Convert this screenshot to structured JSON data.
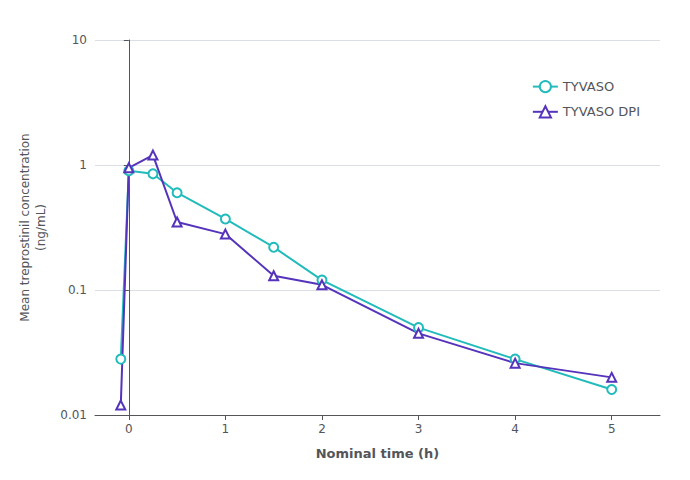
{
  "chart_data": {
    "type": "line",
    "xlabel": "Nominal time (h)",
    "ylabel": "Mean treprostinil concentration\n(ng/mL)",
    "x": [
      -0.083,
      0,
      0.25,
      0.5,
      1.0,
      1.5,
      2.0,
      3.0,
      4.0,
      5.0
    ],
    "series": [
      {
        "name": "TYVASO",
        "color": "#22BBBB",
        "marker": "circle",
        "values": [
          0.028,
          0.9,
          0.85,
          0.6,
          0.37,
          0.22,
          0.12,
          0.05,
          0.028,
          0.016
        ]
      },
      {
        "name": "TYVASO DPI",
        "color": "#5533BB",
        "marker": "triangle",
        "values": [
          0.012,
          0.95,
          1.2,
          0.35,
          0.28,
          0.13,
          0.11,
          0.045,
          0.026,
          0.02
        ]
      }
    ],
    "xlim": [
      -0.35,
      5.5
    ],
    "xticks": [
      0,
      1,
      2,
      3,
      4,
      5
    ],
    "ylim": [
      0.01,
      10
    ],
    "yticks": [
      0.01,
      0.1,
      1,
      10
    ],
    "log": "y",
    "grid": "y",
    "legend": "upper right"
  }
}
